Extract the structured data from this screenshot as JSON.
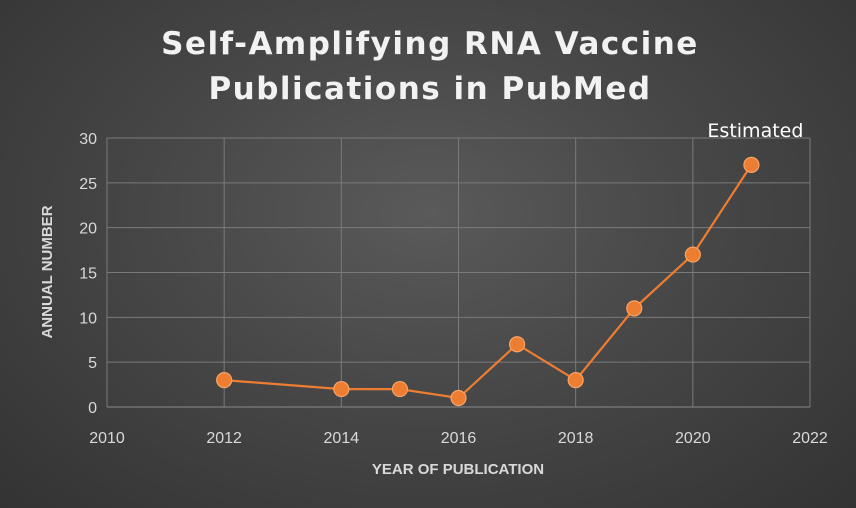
{
  "chart_data": {
    "type": "scatter",
    "title_lines": [
      "Self-Amplifying RNA Vaccine",
      "Publications in PubMed"
    ],
    "xlabel": "YEAR OF PUBLICATION",
    "ylabel": "ANNUAL NUMBER",
    "xlim": [
      2010,
      2022
    ],
    "ylim": [
      0,
      30
    ],
    "x_ticks": [
      2010,
      2012,
      2014,
      2016,
      2018,
      2020,
      2022
    ],
    "y_ticks": [
      0,
      5,
      10,
      15,
      20,
      25,
      30
    ],
    "grid": true,
    "series": [
      {
        "x": [
          2012,
          2014,
          2015,
          2016,
          2017,
          2018,
          2019,
          2020,
          2021
        ],
        "y": [
          3,
          2,
          2,
          1,
          7,
          3,
          11,
          17,
          27
        ],
        "color": "#ed7d31"
      }
    ],
    "annotations": [
      {
        "text": "Estimated",
        "x": 2021
      }
    ]
  }
}
